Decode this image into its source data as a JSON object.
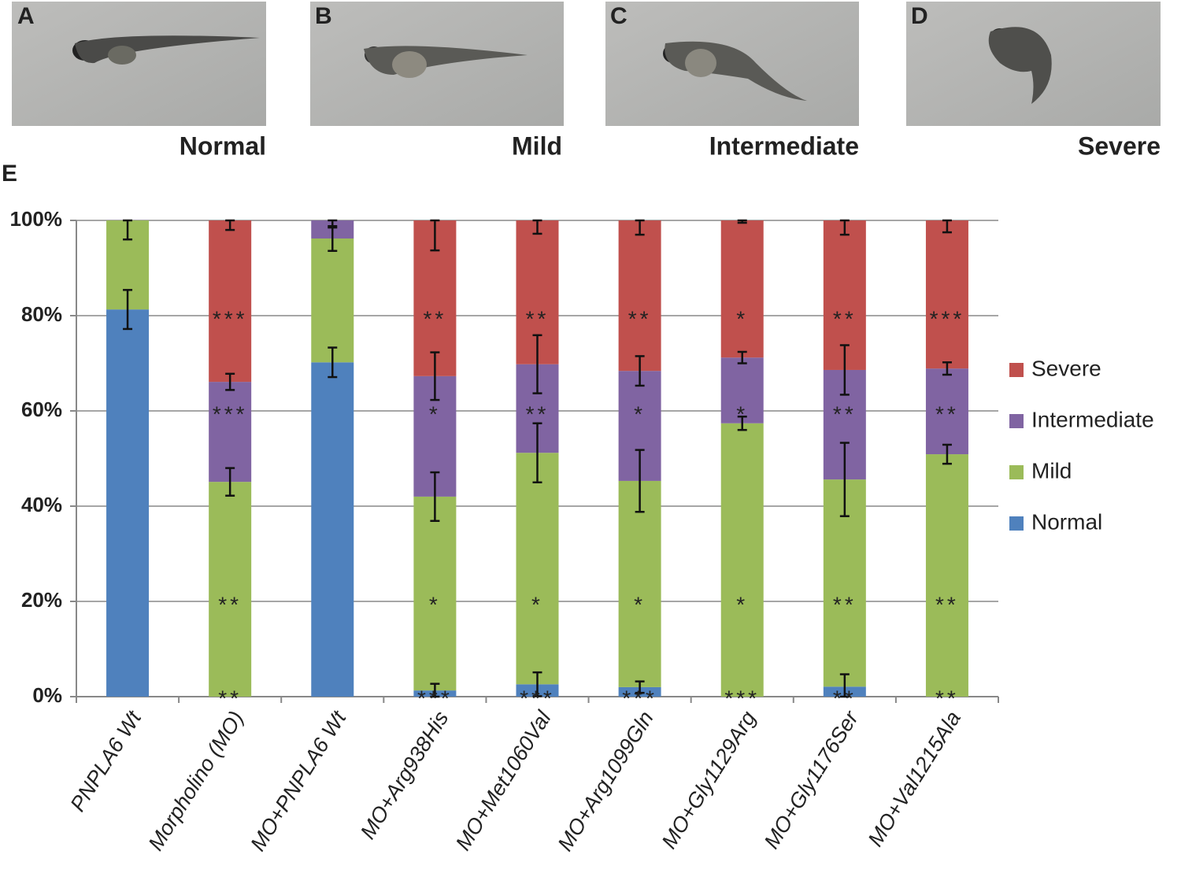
{
  "panels": [
    {
      "letter": "A",
      "caption": "Normal"
    },
    {
      "letter": "B",
      "caption": "Mild"
    },
    {
      "letter": "C",
      "caption": "Intermediate"
    },
    {
      "letter": "D",
      "caption": "Severe"
    }
  ],
  "chart_data": {
    "type": "stacked_bar",
    "panel_label": "E",
    "categories": [
      "PNPLA6 Wt",
      "Morpholino (MO)",
      "MO+PNPLA6 Wt",
      "MO+Arg938His",
      "MO+Met1060Val",
      "MO+Arg1099Gln",
      "MO+Gly1129Arg",
      "MO+Gly1176Ser",
      "MO+Val1215Ala"
    ],
    "series": [
      {
        "name": "Normal",
        "color": "#4f81bd",
        "values": [
          81.3,
          0,
          70.2,
          1.3,
          2.6,
          2.0,
          0,
          2.1,
          0
        ],
        "errors": [
          4.1,
          null,
          3.1,
          1.4,
          2.5,
          1.2,
          null,
          2.6,
          null
        ],
        "stars": [
          null,
          "**",
          null,
          "***",
          "***",
          "***",
          "***",
          "**",
          "**"
        ]
      },
      {
        "name": "Mild",
        "color": "#9bbb59",
        "values": [
          18.7,
          45.1,
          26.0,
          40.7,
          48.6,
          43.3,
          57.4,
          43.5,
          50.9
        ],
        "errors": [
          4.0,
          2.9,
          2.6,
          5.1,
          6.2,
          6.5,
          1.4,
          7.7,
          2.0
        ],
        "stars": [
          null,
          "**",
          null,
          "*",
          "*",
          "*",
          "*",
          "**",
          "**"
        ]
      },
      {
        "name": "Intermediate",
        "color": "#8064a2",
        "values": [
          0,
          21.0,
          3.8,
          25.3,
          18.6,
          23.1,
          13.8,
          23.0,
          18.0
        ],
        "errors": [
          null,
          1.7,
          1.5,
          5.0,
          6.1,
          3.1,
          1.2,
          5.2,
          1.3
        ],
        "stars": [
          null,
          "***",
          null,
          "*",
          "**",
          "*",
          "*",
          "**",
          "**"
        ]
      },
      {
        "name": "Severe",
        "color": "#c0504d",
        "values": [
          0,
          33.9,
          0,
          32.7,
          30.2,
          31.6,
          28.8,
          31.4,
          31.1
        ],
        "errors": [
          null,
          2.0,
          null,
          6.3,
          2.8,
          3.0,
          0.5,
          3.0,
          2.5
        ],
        "stars": [
          null,
          "***",
          null,
          "**",
          "**",
          "**",
          "*",
          "**",
          "***"
        ]
      }
    ],
    "ylim": [
      0,
      100
    ],
    "yticks": [
      {
        "value": 0,
        "label": "0%"
      },
      {
        "value": 20,
        "label": "20%"
      },
      {
        "value": 40,
        "label": "40%"
      },
      {
        "value": 60,
        "label": "60%"
      },
      {
        "value": 80,
        "label": "80%"
      },
      {
        "value": 100,
        "label": "100%"
      }
    ],
    "grid": true,
    "legend": "right"
  }
}
